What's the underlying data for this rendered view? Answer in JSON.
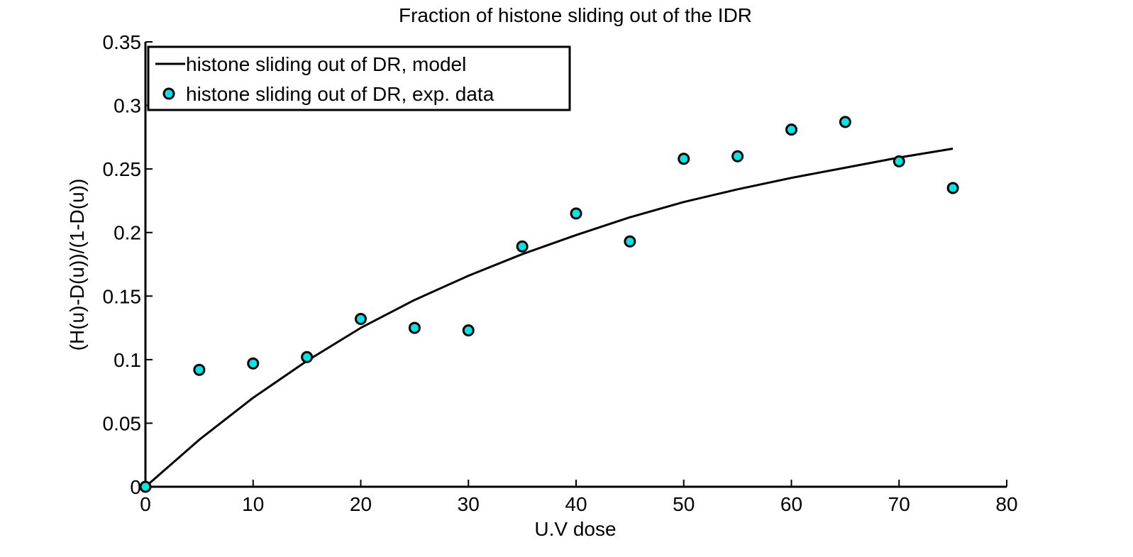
{
  "chart_data": {
    "type": "scatter",
    "title": "Fraction of histone sliding out of the IDR",
    "xlabel": "U.V dose",
    "ylabel": "(H(u)-D(u))/(1-D(u))",
    "xlim": [
      0,
      80
    ],
    "ylim": [
      0,
      0.35
    ],
    "xticks": [
      0,
      10,
      20,
      30,
      40,
      50,
      60,
      70,
      80
    ],
    "yticks": [
      0,
      0.05,
      0.1,
      0.15,
      0.2,
      0.25,
      0.3,
      0.35
    ],
    "xtick_labels": [
      "0",
      "10",
      "20",
      "30",
      "40",
      "50",
      "60",
      "70",
      "80"
    ],
    "ytick_labels": [
      "0",
      "0.05",
      "0.1",
      "0.15",
      "0.2",
      "0.25",
      "0.3",
      "0.35"
    ],
    "grid": false,
    "legend_position": "top-left",
    "series": [
      {
        "name": "histone sliding out of DR, model",
        "kind": "line",
        "color": "#000000",
        "x": [
          0,
          5,
          10,
          15,
          20,
          25,
          30,
          35,
          40,
          45,
          50,
          55,
          60,
          65,
          70,
          75
        ],
        "y": [
          0,
          0.037,
          0.07,
          0.099,
          0.125,
          0.147,
          0.166,
          0.183,
          0.198,
          0.212,
          0.224,
          0.234,
          0.243,
          0.251,
          0.259,
          0.266
        ]
      },
      {
        "name": "histone sliding out of DR, exp. data",
        "kind": "scatter",
        "color": "#00e5e5",
        "edge_color": "#000000",
        "x": [
          0,
          5,
          10,
          15,
          20,
          25,
          30,
          35,
          40,
          45,
          50,
          55,
          60,
          65,
          70,
          75
        ],
        "y": [
          0,
          0.092,
          0.097,
          0.102,
          0.132,
          0.125,
          0.123,
          0.189,
          0.215,
          0.193,
          0.258,
          0.26,
          0.281,
          0.287,
          0.256,
          0.235
        ]
      }
    ]
  }
}
